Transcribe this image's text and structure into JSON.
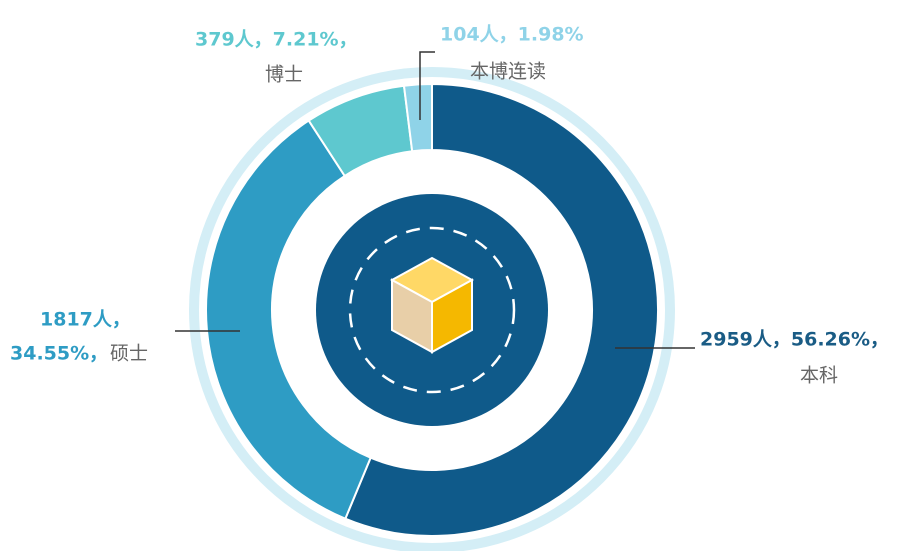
{
  "chart_data": {
    "type": "donut",
    "categories": [
      "本科",
      "硕士",
      "博士",
      "本博连读"
    ],
    "values": [
      2959,
      1817,
      379,
      104
    ],
    "value_labels": [
      [
        "2959人，56.26%，"
      ],
      [
        "1817人，",
        "34.55%，"
      ],
      [
        "379人，7.21%，"
      ],
      [
        "104人，1.98%"
      ]
    ],
    "colors": [
      "#0f5a8a",
      "#2e9cc4",
      "#5ec8cf",
      "#8fd3e8"
    ]
  }
}
